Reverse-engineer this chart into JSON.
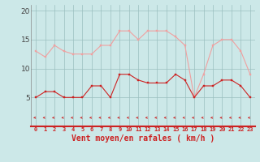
{
  "hours": [
    0,
    1,
    2,
    3,
    4,
    5,
    6,
    7,
    8,
    9,
    10,
    11,
    12,
    13,
    14,
    15,
    16,
    17,
    18,
    19,
    20,
    21,
    22,
    23
  ],
  "rafales": [
    13,
    12,
    14,
    13,
    12.5,
    12.5,
    12.5,
    14,
    14,
    16.5,
    16.5,
    15,
    16.5,
    16.5,
    16.5,
    15.5,
    14,
    5,
    9,
    14,
    15,
    15,
    13,
    9
  ],
  "moyen": [
    5,
    6,
    6,
    5,
    5,
    5,
    7,
    7,
    5,
    9,
    9,
    8,
    7.5,
    7.5,
    7.5,
    9,
    8,
    5,
    7,
    7,
    8,
    8,
    7,
    5
  ],
  "bg_color": "#cce8e8",
  "line_color_rafales": "#f0a0a0",
  "line_color_moyen": "#cc2222",
  "arrow_color": "#cc2222",
  "grid_color": "#9bbfbf",
  "xlabel": "Vent moyen/en rafales ( km/h )",
  "xlabel_color": "#cc2222",
  "yticks": [
    5,
    10,
    15,
    20
  ],
  "ylim": [
    0,
    21
  ],
  "xlim": [
    -0.5,
    23.5
  ],
  "title_color": "#333333"
}
